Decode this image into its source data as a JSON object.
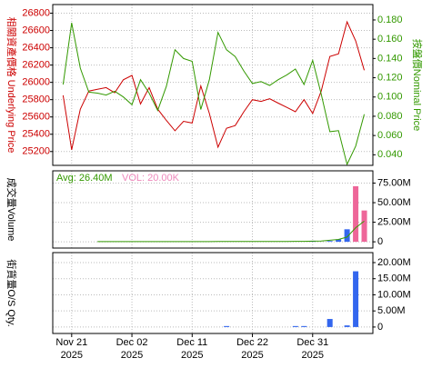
{
  "chart_data": [
    {
      "type": "line",
      "ylabel": "相關資產價格 Underlying Price",
      "y2label": "按盤價Nominal Price",
      "x": [
        0,
        1,
        2,
        3,
        4,
        5,
        6,
        7,
        8,
        9,
        10,
        11,
        12,
        13,
        14,
        15,
        16,
        17,
        18,
        19,
        20,
        21,
        22,
        23,
        24,
        25,
        26,
        27,
        28,
        29,
        30,
        31,
        32,
        33,
        34,
        35
      ],
      "xlim": [
        -1.2,
        36
      ],
      "xticks": [
        {
          "value": 1,
          "label": "Nov 21",
          "year": "2025"
        },
        {
          "value": 8,
          "label": "Dec 02",
          "year": "2025"
        },
        {
          "value": 15,
          "label": "Dec 11",
          "year": "2025"
        },
        {
          "value": 22,
          "label": "Dec 22",
          "year": "2025"
        },
        {
          "value": 29,
          "label": "Dec 31",
          "year": "2025"
        }
      ],
      "ylim": [
        25040,
        26900
      ],
      "yticks": [
        25200,
        25400,
        25600,
        25800,
        26000,
        26200,
        26400,
        26600,
        26800
      ],
      "y2lim": [
        0.029,
        0.196
      ],
      "y2ticks": [
        {
          "value": 0.04,
          "label": "0.040"
        },
        {
          "value": 0.06,
          "label": "0.060"
        },
        {
          "value": 0.08,
          "label": "0.080"
        },
        {
          "value": 0.1,
          "label": "0.100"
        },
        {
          "value": 0.12,
          "label": "0.120"
        },
        {
          "value": 0.14,
          "label": "0.140"
        },
        {
          "value": 0.16,
          "label": "0.160"
        },
        {
          "value": 0.18,
          "label": "0.180"
        }
      ],
      "grid": true,
      "series": [
        {
          "color": "#cc0000",
          "values": [
            25850,
            25220,
            25690,
            25900,
            25920,
            25940,
            25880,
            26030,
            26080,
            25750,
            25940,
            25690,
            25560,
            25440,
            25550,
            25530,
            25960,
            25640,
            25250,
            25470,
            25500,
            25660,
            25800,
            25780,
            25810,
            25760,
            25710,
            25660,
            25800,
            25640,
            25900,
            26300,
            26330,
            26700,
            26480,
            26140
          ]
        },
        {
          "color": "#339900",
          "axis": "y2",
          "values": [
            0.113,
            0.177,
            0.13,
            0.105,
            0.104,
            0.102,
            0.106,
            0.1,
            0.092,
            0.118,
            0.104,
            0.086,
            0.111,
            0.149,
            0.14,
            0.137,
            0.087,
            0.118,
            0.167,
            0.149,
            0.142,
            0.127,
            0.114,
            0.116,
            0.112,
            0.118,
            0.123,
            0.129,
            0.113,
            0.138,
            0.103,
            0.064,
            0.065,
            0.03,
            0.049,
            0.082
          ]
        }
      ]
    },
    {
      "type": "bar",
      "ylabel": "成交量Volume",
      "legend": [
        {
          "text": "Avg: 26.40M",
          "color": "#339900"
        },
        {
          "text": "VOL: 20.00K",
          "color": "#ee88bb"
        }
      ],
      "ylim": [
        -8,
        90.7
      ],
      "yticks": [
        0,
        {
          "value": 25,
          "label": "25.00M"
        },
        {
          "value": 50,
          "label": "50.00M"
        },
        {
          "value": 75,
          "label": "75.00M"
        }
      ],
      "series": [
        {
          "color": "#3366ee",
          "values": [
            0,
            0,
            0,
            0,
            0,
            0,
            0,
            0,
            0,
            0,
            0,
            0,
            0,
            0,
            0,
            0,
            0,
            0,
            0,
            0,
            0,
            0,
            0,
            0,
            0,
            0,
            0,
            0,
            0,
            1,
            0,
            1,
            3,
            16,
            0,
            0
          ]
        },
        {
          "color": "#ee6699",
          "values": [
            0,
            0,
            0,
            0,
            0,
            0,
            0,
            0,
            0,
            0,
            0,
            0,
            0,
            0,
            0,
            0,
            0,
            0,
            0,
            0,
            0,
            0,
            0,
            0,
            0,
            0,
            0,
            0,
            0,
            0,
            0,
            0,
            0,
            0,
            71,
            40
          ]
        },
        {
          "color": "#339900",
          "kind": "line",
          "values": [
            null,
            null,
            null,
            null,
            0.3,
            0.3,
            0.3,
            0.3,
            0.3,
            0.3,
            0.3,
            0.3,
            0.3,
            0.3,
            0.3,
            0.3,
            0.3,
            0.3,
            0.5,
            0.5,
            0.5,
            0.5,
            0.5,
            0.5,
            0.5,
            0.5,
            0.5,
            0.6,
            0.6,
            0.8,
            1,
            2,
            3,
            6,
            18,
            26.4
          ]
        }
      ]
    },
    {
      "type": "bar",
      "ylabel": "街貨量O/S Qty.",
      "ylim": [
        -2,
        23.1
      ],
      "yticks": [
        0,
        {
          "value": 5,
          "label": "5.00M"
        },
        {
          "value": 10,
          "label": "10.00M"
        },
        {
          "value": 15,
          "label": "15.00M"
        },
        {
          "value": 20,
          "label": "20.00M"
        }
      ],
      "series": [
        {
          "color": "#3366ee",
          "values": [
            0,
            0,
            0,
            0,
            0,
            0,
            0,
            0,
            0,
            0,
            0,
            0,
            0,
            0,
            0,
            0,
            0,
            0,
            0,
            0.3,
            0,
            0,
            0,
            0,
            0,
            0,
            0,
            0.3,
            0.3,
            0,
            0,
            2.5,
            0,
            0.5,
            17.3,
            0
          ]
        }
      ]
    }
  ]
}
